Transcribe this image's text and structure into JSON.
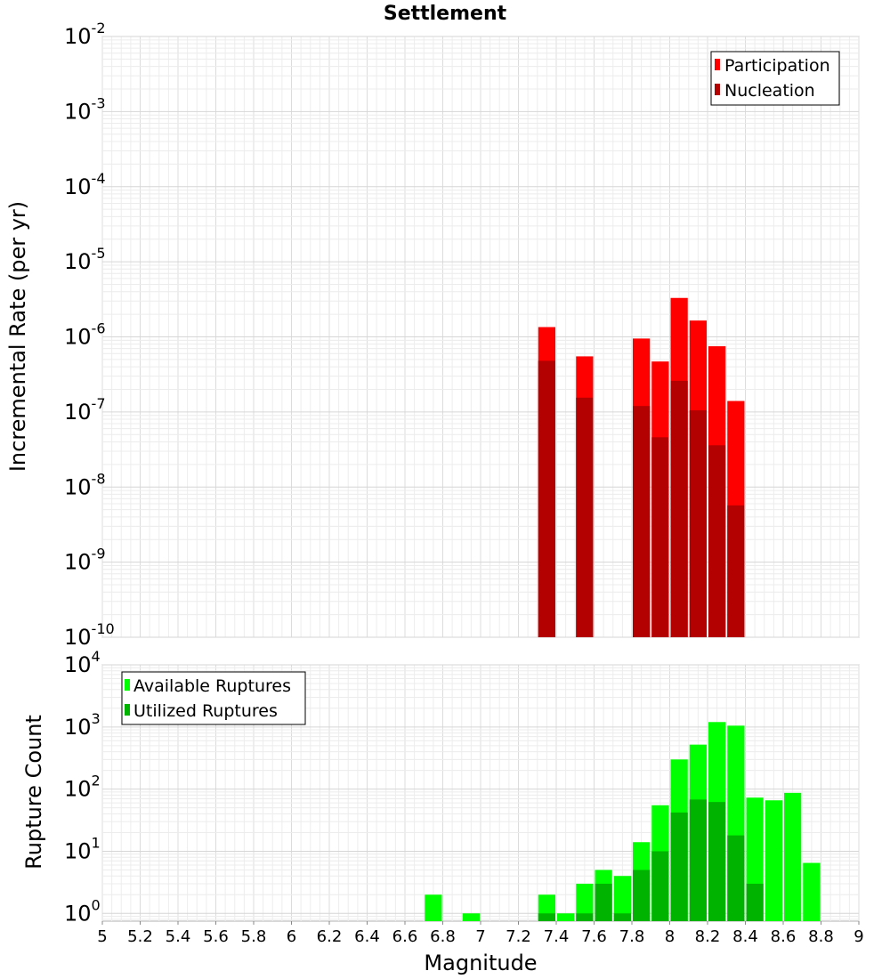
{
  "chart_data": [
    {
      "type": "bar",
      "title": "Settlement",
      "ylabel": "Incremental Rate (per yr)",
      "xlabel": "",
      "yscale": "log",
      "ylim": [
        1e-10,
        0.01
      ],
      "xlim": [
        5,
        9
      ],
      "bar_width": 0.1,
      "y_ticks": [
        {
          "base": "10",
          "exp": "-10",
          "value": 1e-10
        },
        {
          "base": "10",
          "exp": "-9",
          "value": 1e-09
        },
        {
          "base": "10",
          "exp": "-8",
          "value": 1e-08
        },
        {
          "base": "10",
          "exp": "-7",
          "value": 1e-07
        },
        {
          "base": "10",
          "exp": "-6",
          "value": 1e-06
        },
        {
          "base": "10",
          "exp": "-5",
          "value": 1e-05
        },
        {
          "base": "10",
          "exp": "-4",
          "value": 0.0001
        },
        {
          "base": "10",
          "exp": "-3",
          "value": 0.001
        },
        {
          "base": "10",
          "exp": "-2",
          "value": 0.01
        }
      ],
      "legend_position": "top-right",
      "series": [
        {
          "name": "Participation",
          "color": "#ff0000",
          "x": [
            7.35,
            7.55,
            7.85,
            7.95,
            8.05,
            8.15,
            8.25,
            8.35
          ],
          "values": [
            1.35e-06,
            5.5e-07,
            9.5e-07,
            4.7e-07,
            3.3e-06,
            1.65e-06,
            7.5e-07,
            1.4e-07
          ]
        },
        {
          "name": "Nucleation",
          "color": "#b30000",
          "x": [
            7.35,
            7.55,
            7.85,
            7.95,
            8.05,
            8.15,
            8.25,
            8.35
          ],
          "values": [
            4.8e-07,
            1.55e-07,
            1.2e-07,
            4.6e-08,
            2.6e-07,
            1.05e-07,
            3.6e-08,
            5.7e-09
          ]
        }
      ]
    },
    {
      "type": "bar",
      "title": "",
      "ylabel": "Rupture Count",
      "xlabel": "Magnitude",
      "yscale": "log",
      "ylim": [
        0.75,
        10000
      ],
      "xlim": [
        5,
        9
      ],
      "bar_width": 0.1,
      "x_ticks": [
        "5",
        "5.2",
        "5.4",
        "5.6",
        "5.8",
        "6",
        "6.2",
        "6.4",
        "6.6",
        "6.8",
        "7",
        "7.2",
        "7.4",
        "7.6",
        "7.8",
        "8",
        "8.2",
        "8.4",
        "8.6",
        "8.8",
        "9"
      ],
      "y_ticks": [
        {
          "base": "10",
          "exp": "0",
          "value": 1
        },
        {
          "base": "10",
          "exp": "1",
          "value": 10
        },
        {
          "base": "10",
          "exp": "2",
          "value": 100
        },
        {
          "base": "10",
          "exp": "3",
          "value": 1000
        },
        {
          "base": "10",
          "exp": "4",
          "value": 10000
        }
      ],
      "legend_position": "top-left",
      "series": [
        {
          "name": "Available Ruptures",
          "color": "#00ff00",
          "x": [
            6.75,
            6.95,
            7.35,
            7.45,
            7.55,
            7.65,
            7.75,
            7.85,
            7.95,
            8.05,
            8.15,
            8.25,
            8.35,
            8.45,
            8.55,
            8.65,
            8.75
          ],
          "values": [
            2,
            1,
            2,
            1,
            3,
            5,
            4,
            14,
            55,
            300,
            520,
            1200,
            1050,
            73,
            66,
            87,
            6.5
          ]
        },
        {
          "name": "Utilized Ruptures",
          "color": "#00b300",
          "x": [
            7.35,
            7.55,
            7.65,
            7.75,
            7.85,
            7.95,
            8.05,
            8.15,
            8.25,
            8.35,
            8.45
          ],
          "values": [
            1,
            1,
            3,
            1,
            5,
            10,
            42,
            68,
            62,
            18,
            3
          ]
        }
      ]
    }
  ]
}
